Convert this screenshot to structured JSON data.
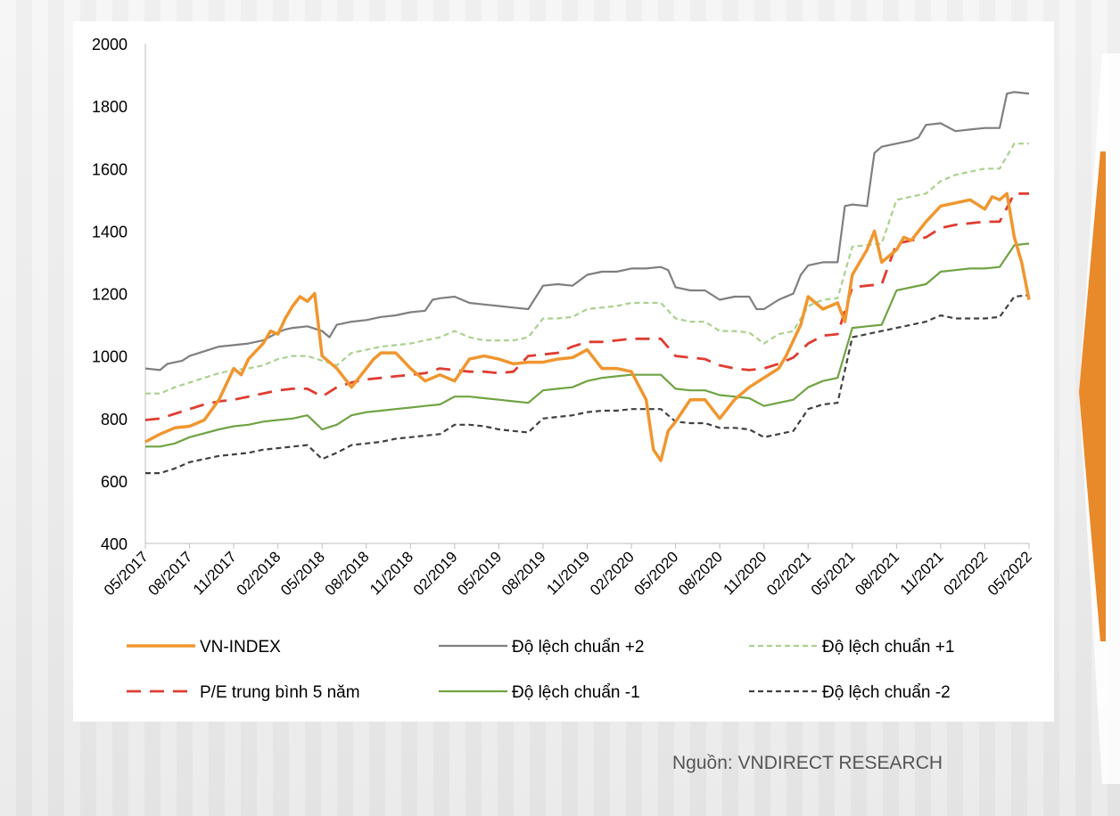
{
  "source_note": "Nguồn: VNDIRECT RESEARCH",
  "colors": {
    "vnindex": "#f0962f",
    "sd_plus2": "#7f7f7f",
    "sd_plus1": "#a9d18e",
    "pe_avg": "#e03c31",
    "sd_minus1": "#70a343",
    "sd_minus2": "#404040",
    "accent": "#e8892a"
  },
  "chart_data": {
    "type": "line",
    "title": "",
    "xlabel": "",
    "ylabel": "",
    "ylim": [
      400,
      2000
    ],
    "yticks": [
      "400",
      "600",
      "800",
      "1000",
      "1200",
      "1400",
      "1600",
      "1800",
      "2000"
    ],
    "x_ticks": [
      "05/2017",
      "08/2017",
      "11/2017",
      "02/2018",
      "05/2018",
      "08/2018",
      "11/2018",
      "02/2019",
      "05/2019",
      "08/2019",
      "11/2019",
      "02/2020",
      "05/2020",
      "08/2020",
      "11/2020",
      "02/2021",
      "05/2021",
      "08/2021",
      "11/2021",
      "02/2022",
      "05/2022"
    ],
    "x_index": [
      0,
      3,
      6,
      9,
      12,
      15,
      18,
      21,
      24,
      27,
      30,
      33,
      36,
      39,
      42,
      45,
      48,
      51,
      54,
      57,
      60
    ],
    "series": [
      {
        "name": "VN-INDEX",
        "key": "vnindex",
        "style": "solid-thick",
        "x": [
          0,
          1,
          2,
          3,
          4,
          5,
          6,
          6.5,
          7,
          8,
          8.5,
          9,
          9.5,
          10,
          10.5,
          11,
          11.5,
          12,
          13,
          14,
          15,
          15.5,
          16,
          17,
          18,
          19,
          20,
          21,
          22,
          23,
          24,
          25,
          26,
          27,
          28,
          29,
          30,
          31,
          32,
          33,
          33.5,
          34,
          34.5,
          35,
          35.5,
          36,
          37,
          38,
          39,
          40,
          41,
          42,
          43,
          43.5,
          44,
          44.5,
          45,
          46,
          47,
          47.5,
          48,
          49,
          49.5,
          50,
          50.5,
          51,
          51.5,
          52,
          53,
          54,
          55,
          56,
          57,
          57.5,
          58,
          58.5,
          59,
          59.5,
          60
        ],
        "values": [
          725,
          750,
          770,
          775,
          795,
          860,
          960,
          940,
          990,
          1040,
          1080,
          1070,
          1120,
          1160,
          1190,
          1175,
          1200,
          1000,
          960,
          900,
          960,
          990,
          1010,
          1010,
          960,
          920,
          940,
          920,
          990,
          1000,
          990,
          975,
          980,
          980,
          990,
          995,
          1020,
          960,
          960,
          950,
          905,
          860,
          700,
          665,
          760,
          790,
          860,
          860,
          800,
          860,
          900,
          930,
          960,
          1000,
          1050,
          1100,
          1190,
          1150,
          1170,
          1110,
          1260,
          1340,
          1400,
          1300,
          1320,
          1340,
          1380,
          1370,
          1430,
          1480,
          1490,
          1500,
          1470,
          1510,
          1500,
          1520,
          1380,
          1300,
          1180
        ]
      },
      {
        "name": "Độ lệch chuẩn +2",
        "key": "sd_plus2",
        "style": "solid",
        "x": [
          0,
          1,
          1.5,
          2.5,
          3,
          5,
          6,
          7,
          8,
          9,
          9.5,
          10,
          11,
          12,
          12.5,
          13,
          14,
          15,
          16,
          17,
          18,
          19,
          19.5,
          20,
          21,
          22,
          23,
          24,
          25,
          26,
          27,
          28,
          29,
          30,
          31,
          32,
          33,
          34,
          35,
          35.5,
          36,
          37,
          38,
          39,
          40,
          41,
          41.5,
          42,
          43,
          44,
          44.5,
          45,
          46,
          47,
          47.5,
          48,
          49,
          49.5,
          50,
          51,
          52,
          52.5,
          53,
          54,
          55,
          56,
          57,
          58,
          58.5,
          59,
          60
        ],
        "values": [
          960,
          955,
          975,
          985,
          1000,
          1030,
          1035,
          1040,
          1050,
          1075,
          1085,
          1090,
          1095,
          1080,
          1060,
          1100,
          1110,
          1115,
          1125,
          1130,
          1140,
          1145,
          1180,
          1185,
          1190,
          1170,
          1165,
          1160,
          1155,
          1150,
          1225,
          1230,
          1225,
          1260,
          1270,
          1270,
          1280,
          1280,
          1285,
          1275,
          1220,
          1210,
          1210,
          1180,
          1190,
          1190,
          1150,
          1150,
          1180,
          1200,
          1260,
          1290,
          1300,
          1300,
          1480,
          1485,
          1480,
          1650,
          1670,
          1680,
          1690,
          1700,
          1740,
          1745,
          1720,
          1725,
          1730,
          1730,
          1840,
          1845,
          1840
        ]
      },
      {
        "name": "Độ lệch chuẩn +1",
        "key": "sd_plus1",
        "style": "dashed-short",
        "x": [
          0,
          1,
          2,
          3,
          5,
          6,
          7,
          8,
          9,
          10,
          11,
          12,
          13,
          14,
          15,
          16,
          17,
          18,
          19,
          20,
          21,
          22,
          23,
          24,
          25,
          26,
          27,
          28,
          29,
          30,
          31,
          32,
          33,
          34,
          35,
          36,
          37,
          38,
          39,
          40,
          41,
          42,
          43,
          44,
          45,
          46,
          47,
          48,
          49,
          50,
          51,
          52,
          53,
          54,
          55,
          56,
          57,
          58,
          59,
          60
        ],
        "values": [
          880,
          880,
          900,
          915,
          945,
          955,
          960,
          970,
          990,
          1000,
          1000,
          985,
          970,
          1010,
          1020,
          1030,
          1035,
          1040,
          1050,
          1060,
          1080,
          1060,
          1050,
          1050,
          1050,
          1060,
          1120,
          1120,
          1125,
          1150,
          1155,
          1160,
          1170,
          1170,
          1170,
          1120,
          1110,
          1110,
          1080,
          1080,
          1075,
          1040,
          1070,
          1080,
          1160,
          1180,
          1185,
          1350,
          1355,
          1360,
          1500,
          1510,
          1520,
          1560,
          1580,
          1590,
          1600,
          1600,
          1680,
          1680
        ]
      },
      {
        "name": "P/E trung bình 5 năm",
        "key": "pe_avg",
        "style": "dashed-long",
        "x": [
          0,
          1,
          2,
          3,
          4,
          5,
          6,
          7,
          8,
          9,
          10,
          11,
          12,
          13,
          14,
          15,
          16,
          17,
          18,
          19,
          20,
          21,
          22,
          23,
          24,
          25,
          26,
          27,
          28,
          29,
          30,
          31,
          32,
          33,
          34,
          35,
          36,
          37,
          38,
          39,
          40,
          41,
          42,
          43,
          44,
          45,
          46,
          47,
          48,
          49,
          50,
          51,
          52,
          53,
          54,
          55,
          56,
          57,
          58,
          59,
          60
        ],
        "values": [
          795,
          800,
          815,
          830,
          845,
          855,
          860,
          870,
          880,
          890,
          895,
          895,
          870,
          900,
          915,
          925,
          930,
          935,
          940,
          945,
          960,
          955,
          950,
          950,
          945,
          950,
          1000,
          1005,
          1010,
          1030,
          1045,
          1045,
          1050,
          1055,
          1055,
          1055,
          1000,
          995,
          990,
          970,
          960,
          955,
          960,
          975,
          995,
          1040,
          1065,
          1070,
          1220,
          1225,
          1230,
          1360,
          1370,
          1380,
          1410,
          1420,
          1425,
          1430,
          1430,
          1520,
          1520
        ]
      },
      {
        "name": "Độ lệch chuẩn -1",
        "key": "sd_minus1",
        "style": "solid",
        "x": [
          0,
          1,
          2,
          3,
          5,
          6,
          7,
          8,
          9,
          10,
          11,
          12,
          13,
          14,
          15,
          16,
          17,
          18,
          19,
          20,
          21,
          22,
          23,
          24,
          25,
          26,
          27,
          28,
          29,
          30,
          31,
          32,
          33,
          34,
          35,
          36,
          37,
          38,
          39,
          40,
          41,
          42,
          43,
          44,
          45,
          46,
          47,
          48,
          49,
          50,
          51,
          52,
          53,
          54,
          55,
          56,
          57,
          58,
          59,
          60
        ],
        "values": [
          710,
          710,
          720,
          740,
          765,
          775,
          780,
          790,
          795,
          800,
          810,
          765,
          780,
          810,
          820,
          825,
          830,
          835,
          840,
          845,
          870,
          870,
          865,
          860,
          855,
          850,
          890,
          895,
          900,
          920,
          930,
          935,
          940,
          940,
          940,
          895,
          890,
          890,
          875,
          870,
          865,
          840,
          850,
          860,
          900,
          920,
          930,
          1090,
          1095,
          1100,
          1210,
          1220,
          1230,
          1270,
          1275,
          1280,
          1280,
          1285,
          1355,
          1360
        ]
      },
      {
        "name": "Độ lệch chuẩn -2",
        "key": "sd_minus2",
        "style": "dashed-short",
        "x": [
          0,
          1,
          2,
          3,
          5,
          6,
          7,
          8,
          9,
          10,
          11,
          12,
          13,
          14,
          15,
          16,
          17,
          18,
          19,
          20,
          21,
          22,
          23,
          24,
          25,
          26,
          27,
          28,
          29,
          30,
          31,
          32,
          33,
          34,
          35,
          36,
          37,
          38,
          39,
          40,
          41,
          42,
          43,
          44,
          45,
          46,
          47,
          48,
          49,
          50,
          51,
          52,
          53,
          54,
          55,
          56,
          57,
          58,
          59,
          60
        ],
        "values": [
          625,
          625,
          640,
          660,
          680,
          685,
          690,
          700,
          705,
          710,
          715,
          670,
          690,
          715,
          720,
          725,
          735,
          740,
          745,
          750,
          780,
          780,
          775,
          765,
          760,
          755,
          800,
          805,
          810,
          820,
          825,
          825,
          830,
          830,
          830,
          790,
          785,
          785,
          770,
          770,
          765,
          740,
          750,
          760,
          830,
          845,
          850,
          1060,
          1070,
          1080,
          1090,
          1100,
          1110,
          1130,
          1120,
          1120,
          1120,
          1125,
          1190,
          1195
        ]
      }
    ],
    "legend": [
      {
        "label": "VN-INDEX",
        "key": "vnindex",
        "style": "solid-thick"
      },
      {
        "label": "Độ lệch chuẩn +2",
        "key": "sd_plus2",
        "style": "solid"
      },
      {
        "label": "Độ lệch chuẩn +1",
        "key": "sd_plus1",
        "style": "dashed-short"
      },
      {
        "label": "P/E trung bình 5 năm",
        "key": "pe_avg",
        "style": "dashed-long"
      },
      {
        "label": "Độ lệch chuẩn -1",
        "key": "sd_minus1",
        "style": "solid"
      },
      {
        "label": "Độ lệch chuẩn -2",
        "key": "sd_minus2",
        "style": "dashed-short"
      }
    ],
    "legend_position": "bottom",
    "grid": false
  }
}
